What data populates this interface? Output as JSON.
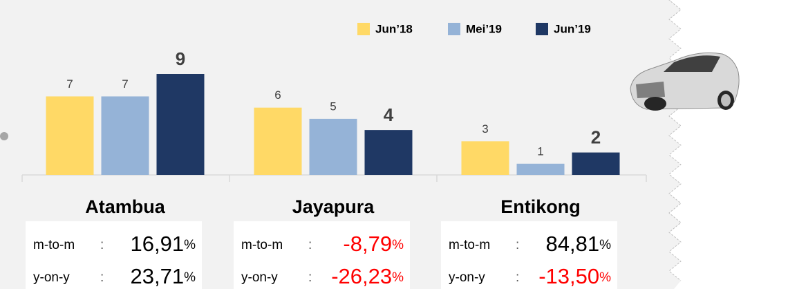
{
  "chart_data": {
    "type": "bar",
    "categories": [
      "Atambua",
      "Jayapura",
      "Entikong"
    ],
    "series": [
      {
        "name": "Jun’18",
        "color": "#FFD966",
        "values": [
          7,
          6,
          3
        ]
      },
      {
        "name": "Mei’19",
        "color": "#95B3D7",
        "values": [
          7,
          5,
          1
        ]
      },
      {
        "name": "Jun’19",
        "color": "#1F3864",
        "values": [
          9,
          4,
          2
        ]
      }
    ],
    "legend": "top-right",
    "stats": [
      {
        "rows": [
          {
            "label": "m-to-m",
            "sep": ":",
            "value": "16,91",
            "unit": "%",
            "color": "#000000"
          },
          {
            "label": "y-on-y",
            "sep": ":",
            "value": "23,71",
            "unit": "%",
            "color": "#000000"
          }
        ]
      },
      {
        "rows": [
          {
            "label": "m-to-m",
            "sep": ":",
            "value": "-8,79",
            "unit": "%",
            "color": "#FF0000"
          },
          {
            "label": "y-on-y",
            "sep": ":",
            "value": "-26,23",
            "unit": "%",
            "color": "#FF0000"
          }
        ]
      },
      {
        "rows": [
          {
            "label": "m-to-m",
            "sep": ":",
            "value": "84,81",
            "unit": "%",
            "color": "#000000"
          },
          {
            "label": "y-on-y",
            "sep": ":",
            "value": "-13,50",
            "unit": "%",
            "color": "#FF0000"
          }
        ]
      }
    ]
  }
}
